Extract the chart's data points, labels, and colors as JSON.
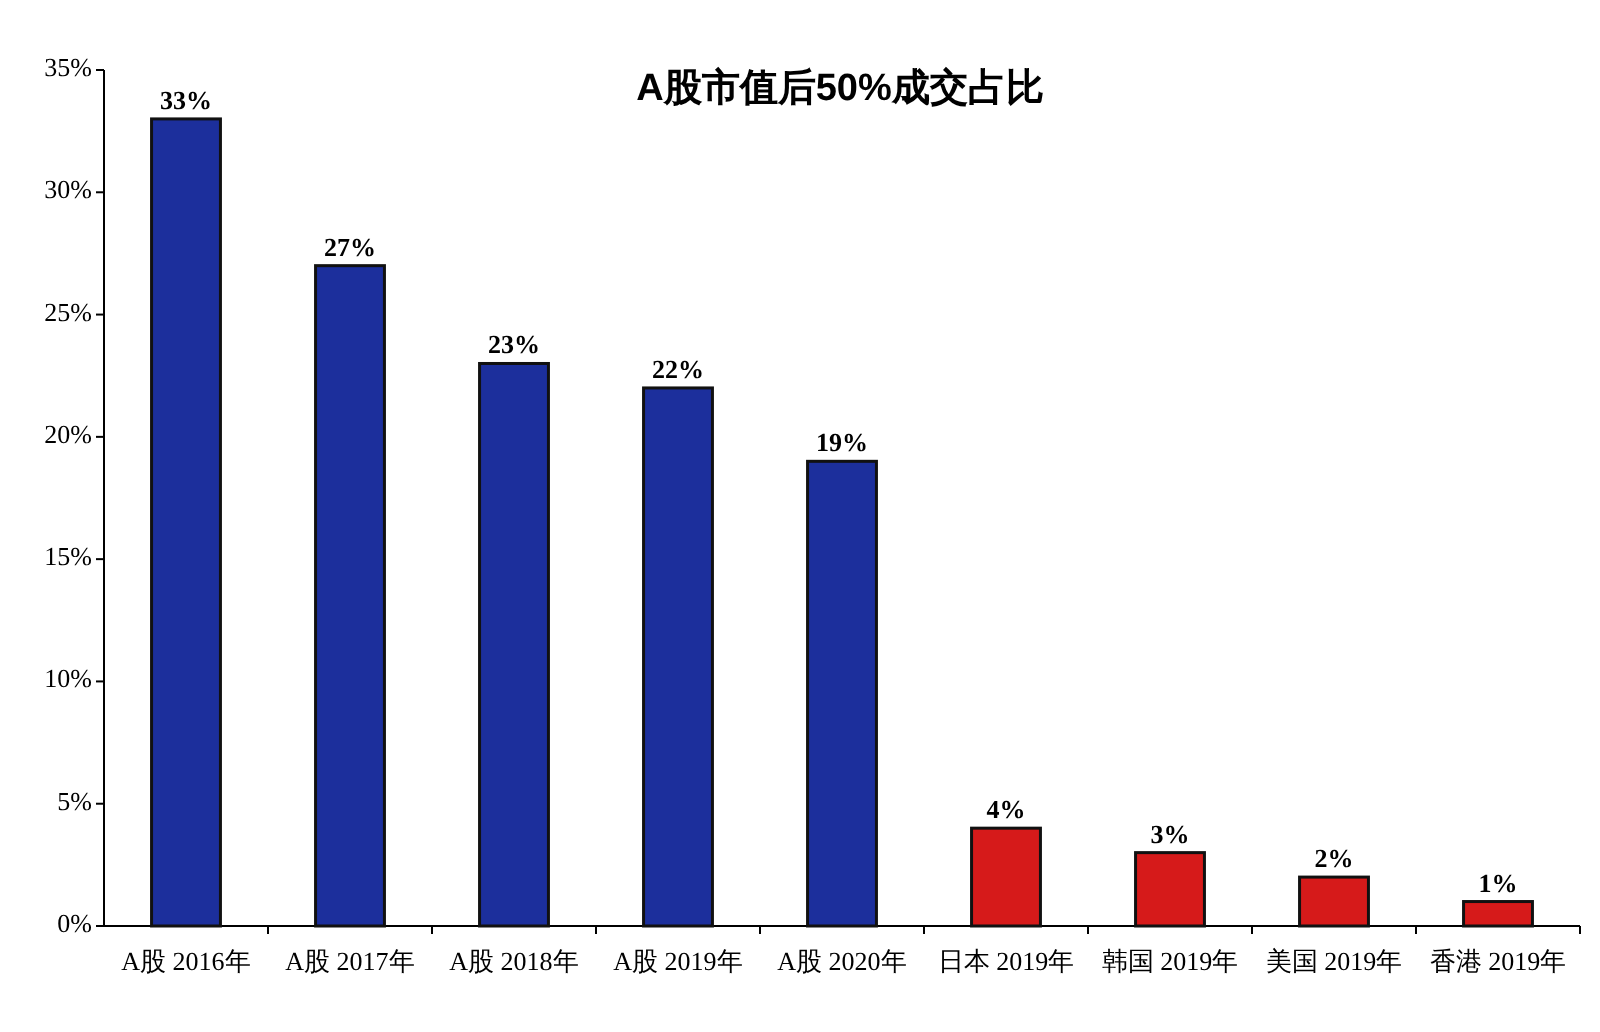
{
  "chart_data": {
    "type": "bar",
    "title": "A股市值后50%成交占比",
    "categories": [
      "A股 2016年",
      "A股 2017年",
      "A股 2018年",
      "A股 2019年",
      "A股 2020年",
      "日本 2019年",
      "韩国 2019年",
      "美国 2019年",
      "香港 2019年"
    ],
    "values": [
      33,
      27,
      23,
      22,
      19,
      4,
      3,
      2,
      1
    ],
    "colors": [
      "#1c2f9c",
      "#1c2f9c",
      "#1c2f9c",
      "#1c2f9c",
      "#1c2f9c",
      "#d61a1a",
      "#d61a1a",
      "#d61a1a",
      "#d61a1a"
    ],
    "value_labels": [
      "33%",
      "27%",
      "23%",
      "22%",
      "19%",
      "4%",
      "3%",
      "2%",
      "1%"
    ],
    "ylim": [
      0,
      35
    ],
    "yticks": [
      {
        "value": 0,
        "label": "0%"
      },
      {
        "value": 5,
        "label": "5%"
      },
      {
        "value": 10,
        "label": "10%"
      },
      {
        "value": 15,
        "label": "15%"
      },
      {
        "value": 20,
        "label": "20%"
      },
      {
        "value": 25,
        "label": "25%"
      },
      {
        "value": 30,
        "label": "30%"
      },
      {
        "value": 35,
        "label": "35%"
      }
    ],
    "grid": false
  }
}
